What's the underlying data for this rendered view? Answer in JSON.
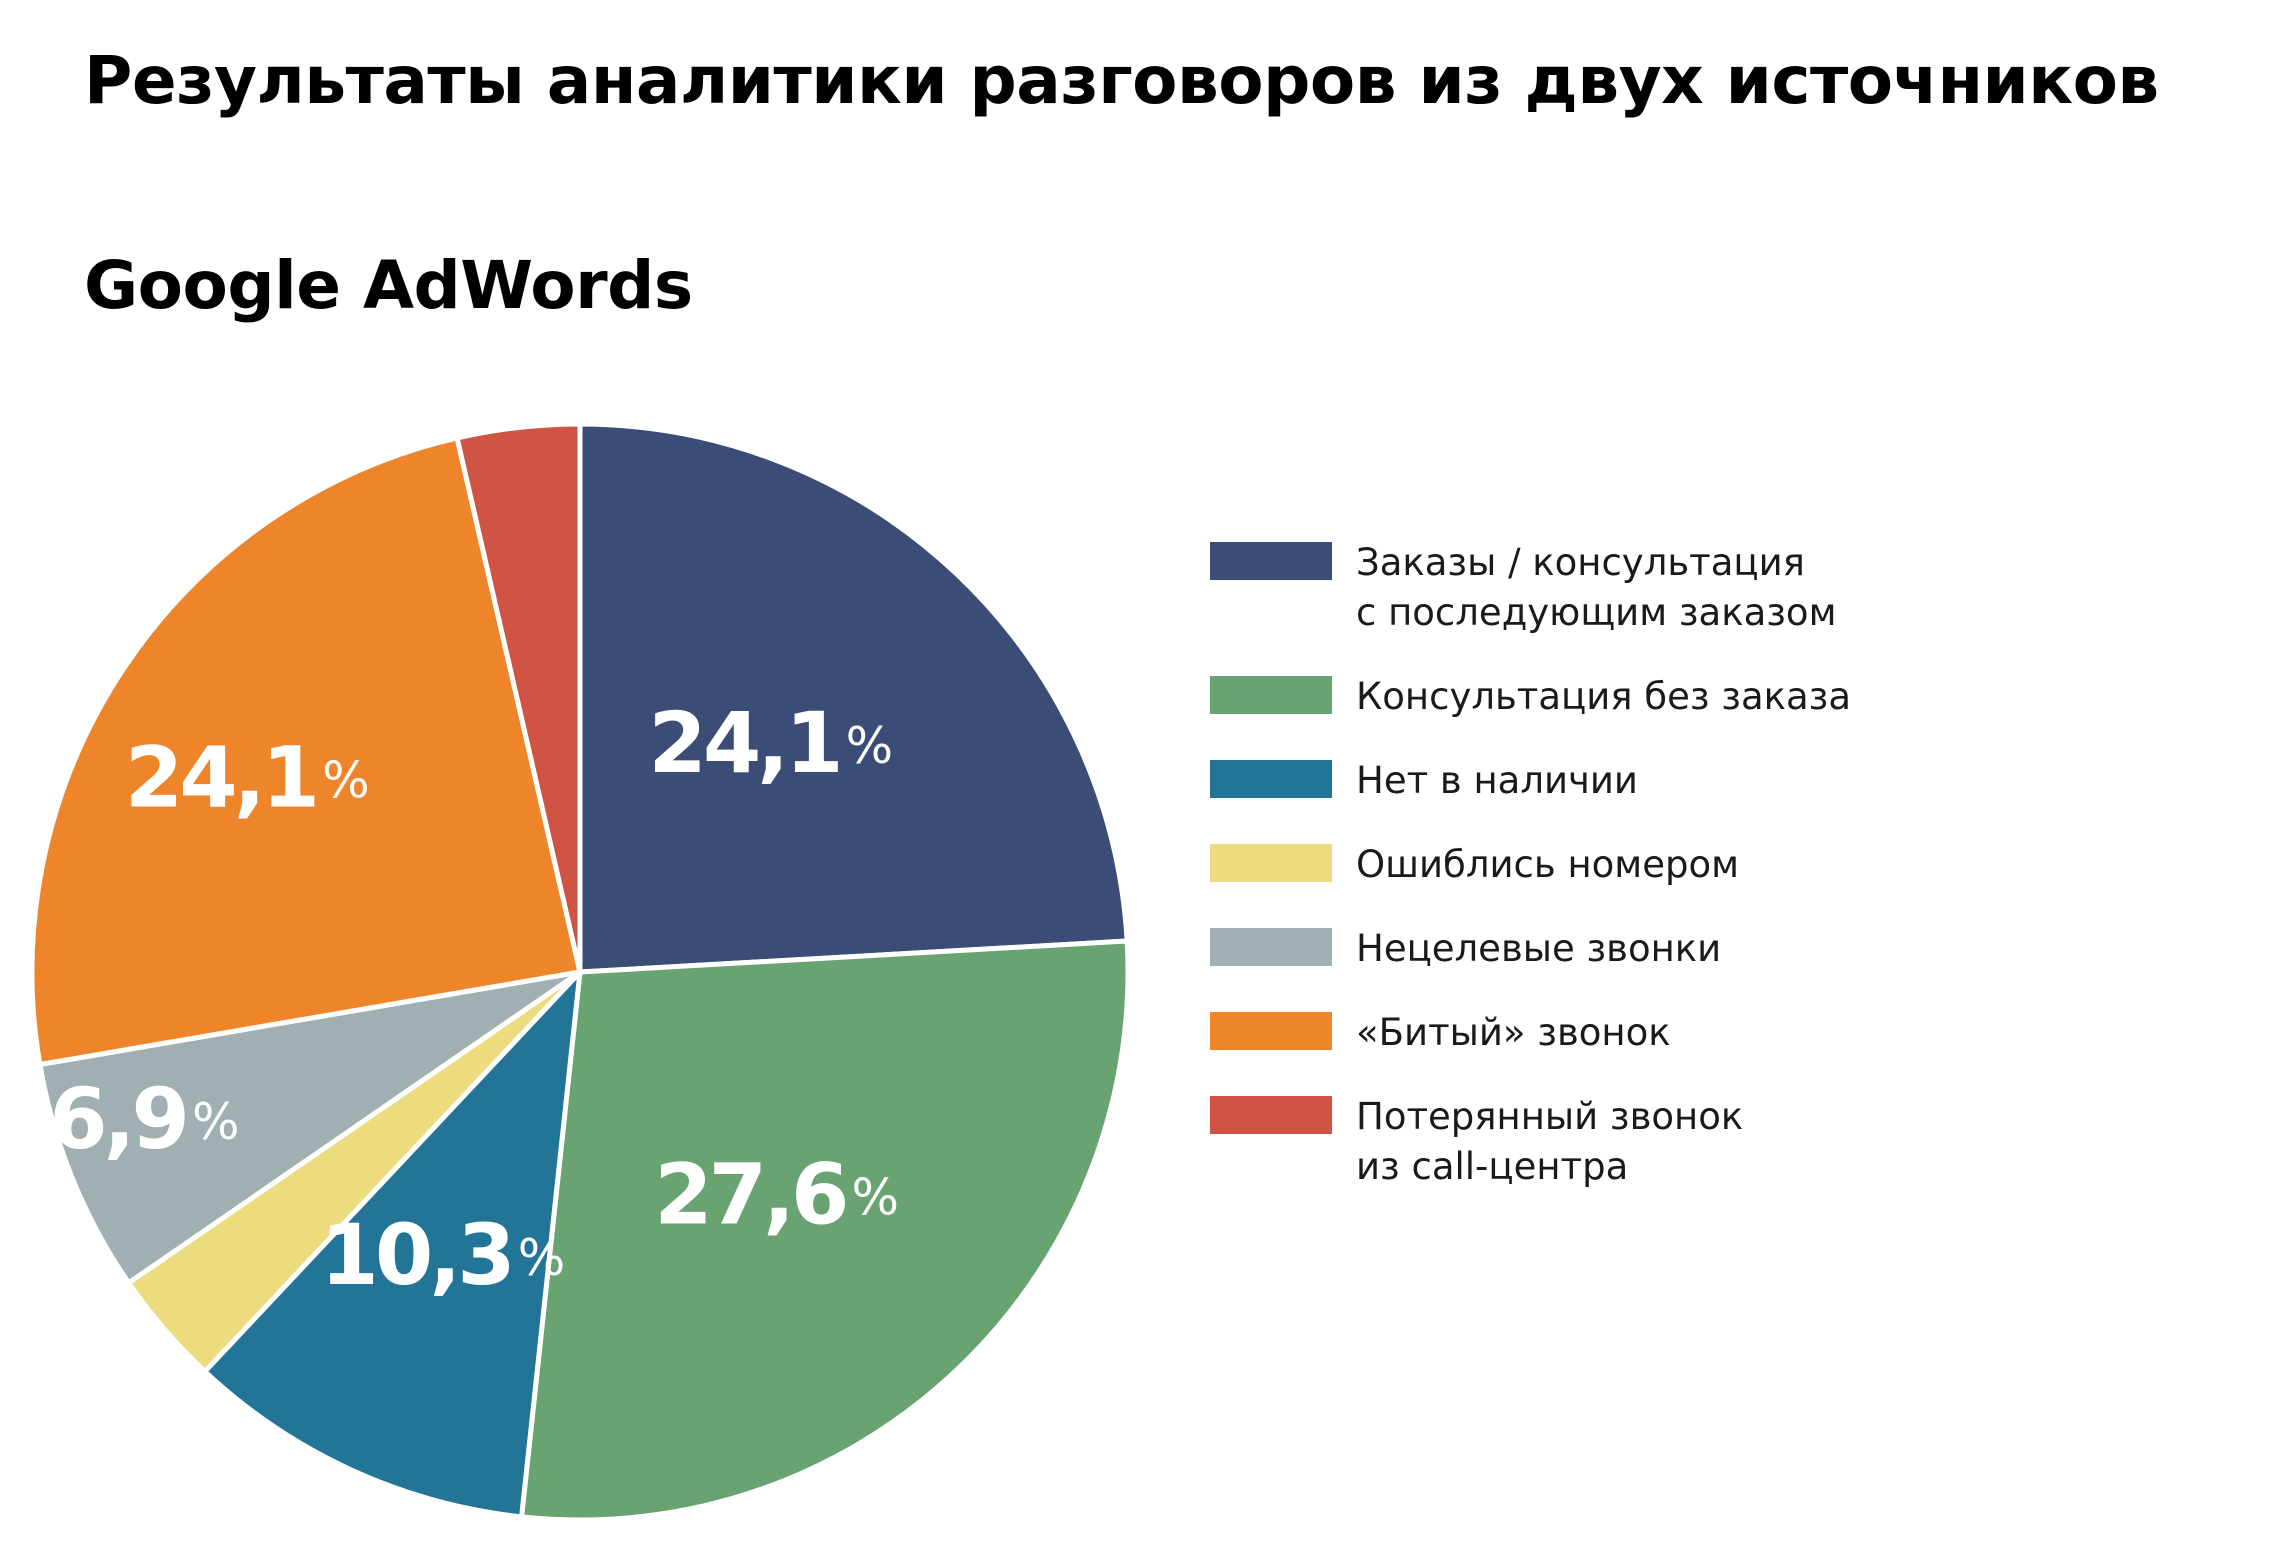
{
  "title": "Результаты аналитики разговоров из двух источников",
  "subtitle": "Google AdWords",
  "percent_sign": "%",
  "chart_data": {
    "type": "pie",
    "title": "Google AdWords",
    "start_angle_deg": 0,
    "direction": "clockwise",
    "legend_position": "right",
    "slices": [
      {
        "label": "Заказы / консультация\nс последующим заказом",
        "value": 24.1,
        "color": "#3b4d76",
        "display": "24,1"
      },
      {
        "label": "Консультация без заказа",
        "value": 27.6,
        "color": "#68a371",
        "display": "27,6"
      },
      {
        "label": "Нет в наличии",
        "value": 10.3,
        "color": "#237597",
        "display": "10,3"
      },
      {
        "label": "Ошиблись номером",
        "value": 3.4,
        "color": "#ecdc7e",
        "display": ""
      },
      {
        "label": "Нецелевые звонки",
        "value": 6.9,
        "color": "#a0afb1",
        "display": "6,9"
      },
      {
        "label": "«Битый» звонок",
        "value": 24.1,
        "color": "#ee852b",
        "display": "24,1"
      },
      {
        "label": "Потерянный звонок\nиз call-центра",
        "value": 3.6,
        "color": "#cf5444",
        "display": ""
      }
    ]
  }
}
